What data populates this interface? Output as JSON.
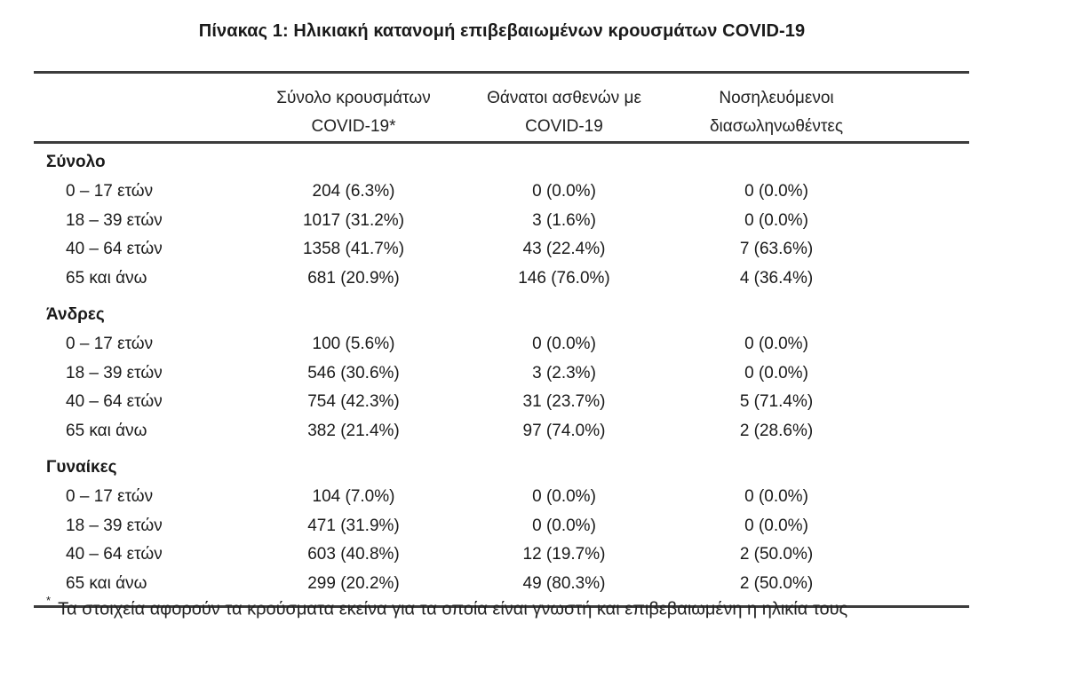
{
  "title": "Πίνακας 1: Ηλικιακή κατανομή επιβεβαιωμένων κρουσμάτων COVID-19",
  "columns": [
    {
      "line1": "Σύνολο κρουσμάτων",
      "line2": "COVID-19*"
    },
    {
      "line1": "Θάνατοι ασθενών με",
      "line2": "COVID-19"
    },
    {
      "line1": "Νοσηλευόμενοι",
      "line2": "διασωληνωθέντες"
    }
  ],
  "groups": [
    {
      "name": "Σύνολο",
      "rows": [
        {
          "label": "0 – 17 ετών",
          "cases": "204 (6.3%)",
          "deaths": "0 (0.0%)",
          "intubated": "0 (0.0%)"
        },
        {
          "label": "18 – 39 ετών",
          "cases": "1017 (31.2%)",
          "deaths": "3 (1.6%)",
          "intubated": "0 (0.0%)"
        },
        {
          "label": "40 – 64 ετών",
          "cases": "1358 (41.7%)",
          "deaths": "43 (22.4%)",
          "intubated": "7 (63.6%)"
        },
        {
          "label": "65 και άνω",
          "cases": "681 (20.9%)",
          "deaths": "146 (76.0%)",
          "intubated": "4 (36.4%)"
        }
      ]
    },
    {
      "name": "Άνδρες",
      "rows": [
        {
          "label": "0 – 17 ετών",
          "cases": "100 (5.6%)",
          "deaths": "0 (0.0%)",
          "intubated": "0 (0.0%)"
        },
        {
          "label": "18 – 39 ετών",
          "cases": "546 (30.6%)",
          "deaths": "3 (2.3%)",
          "intubated": "0 (0.0%)"
        },
        {
          "label": "40 – 64 ετών",
          "cases": "754 (42.3%)",
          "deaths": "31 (23.7%)",
          "intubated": "5 (71.4%)"
        },
        {
          "label": "65 και άνω",
          "cases": "382 (21.4%)",
          "deaths": "97 (74.0%)",
          "intubated": "2 (28.6%)"
        }
      ]
    },
    {
      "name": "Γυναίκες",
      "rows": [
        {
          "label": "0 – 17 ετών",
          "cases": "104 (7.0%)",
          "deaths": "0 (0.0%)",
          "intubated": "0 (0.0%)"
        },
        {
          "label": "18 – 39 ετών",
          "cases": "471 (31.9%)",
          "deaths": "0 (0.0%)",
          "intubated": "0 (0.0%)"
        },
        {
          "label": "40 – 64 ετών",
          "cases": "603 (40.8%)",
          "deaths": "12 (19.7%)",
          "intubated": "2 (50.0%)"
        },
        {
          "label": "65 και άνω",
          "cases": "299 (20.2%)",
          "deaths": "49 (80.3%)",
          "intubated": "2 (50.0%)"
        }
      ]
    }
  ],
  "footnote": {
    "marker": "*",
    "text": "Τα στοιχεία αφορούν τα κρούσματα εκείνα για τα οποία είναι γνωστή και επιβεβαιωμένη η ηλικία τους"
  }
}
